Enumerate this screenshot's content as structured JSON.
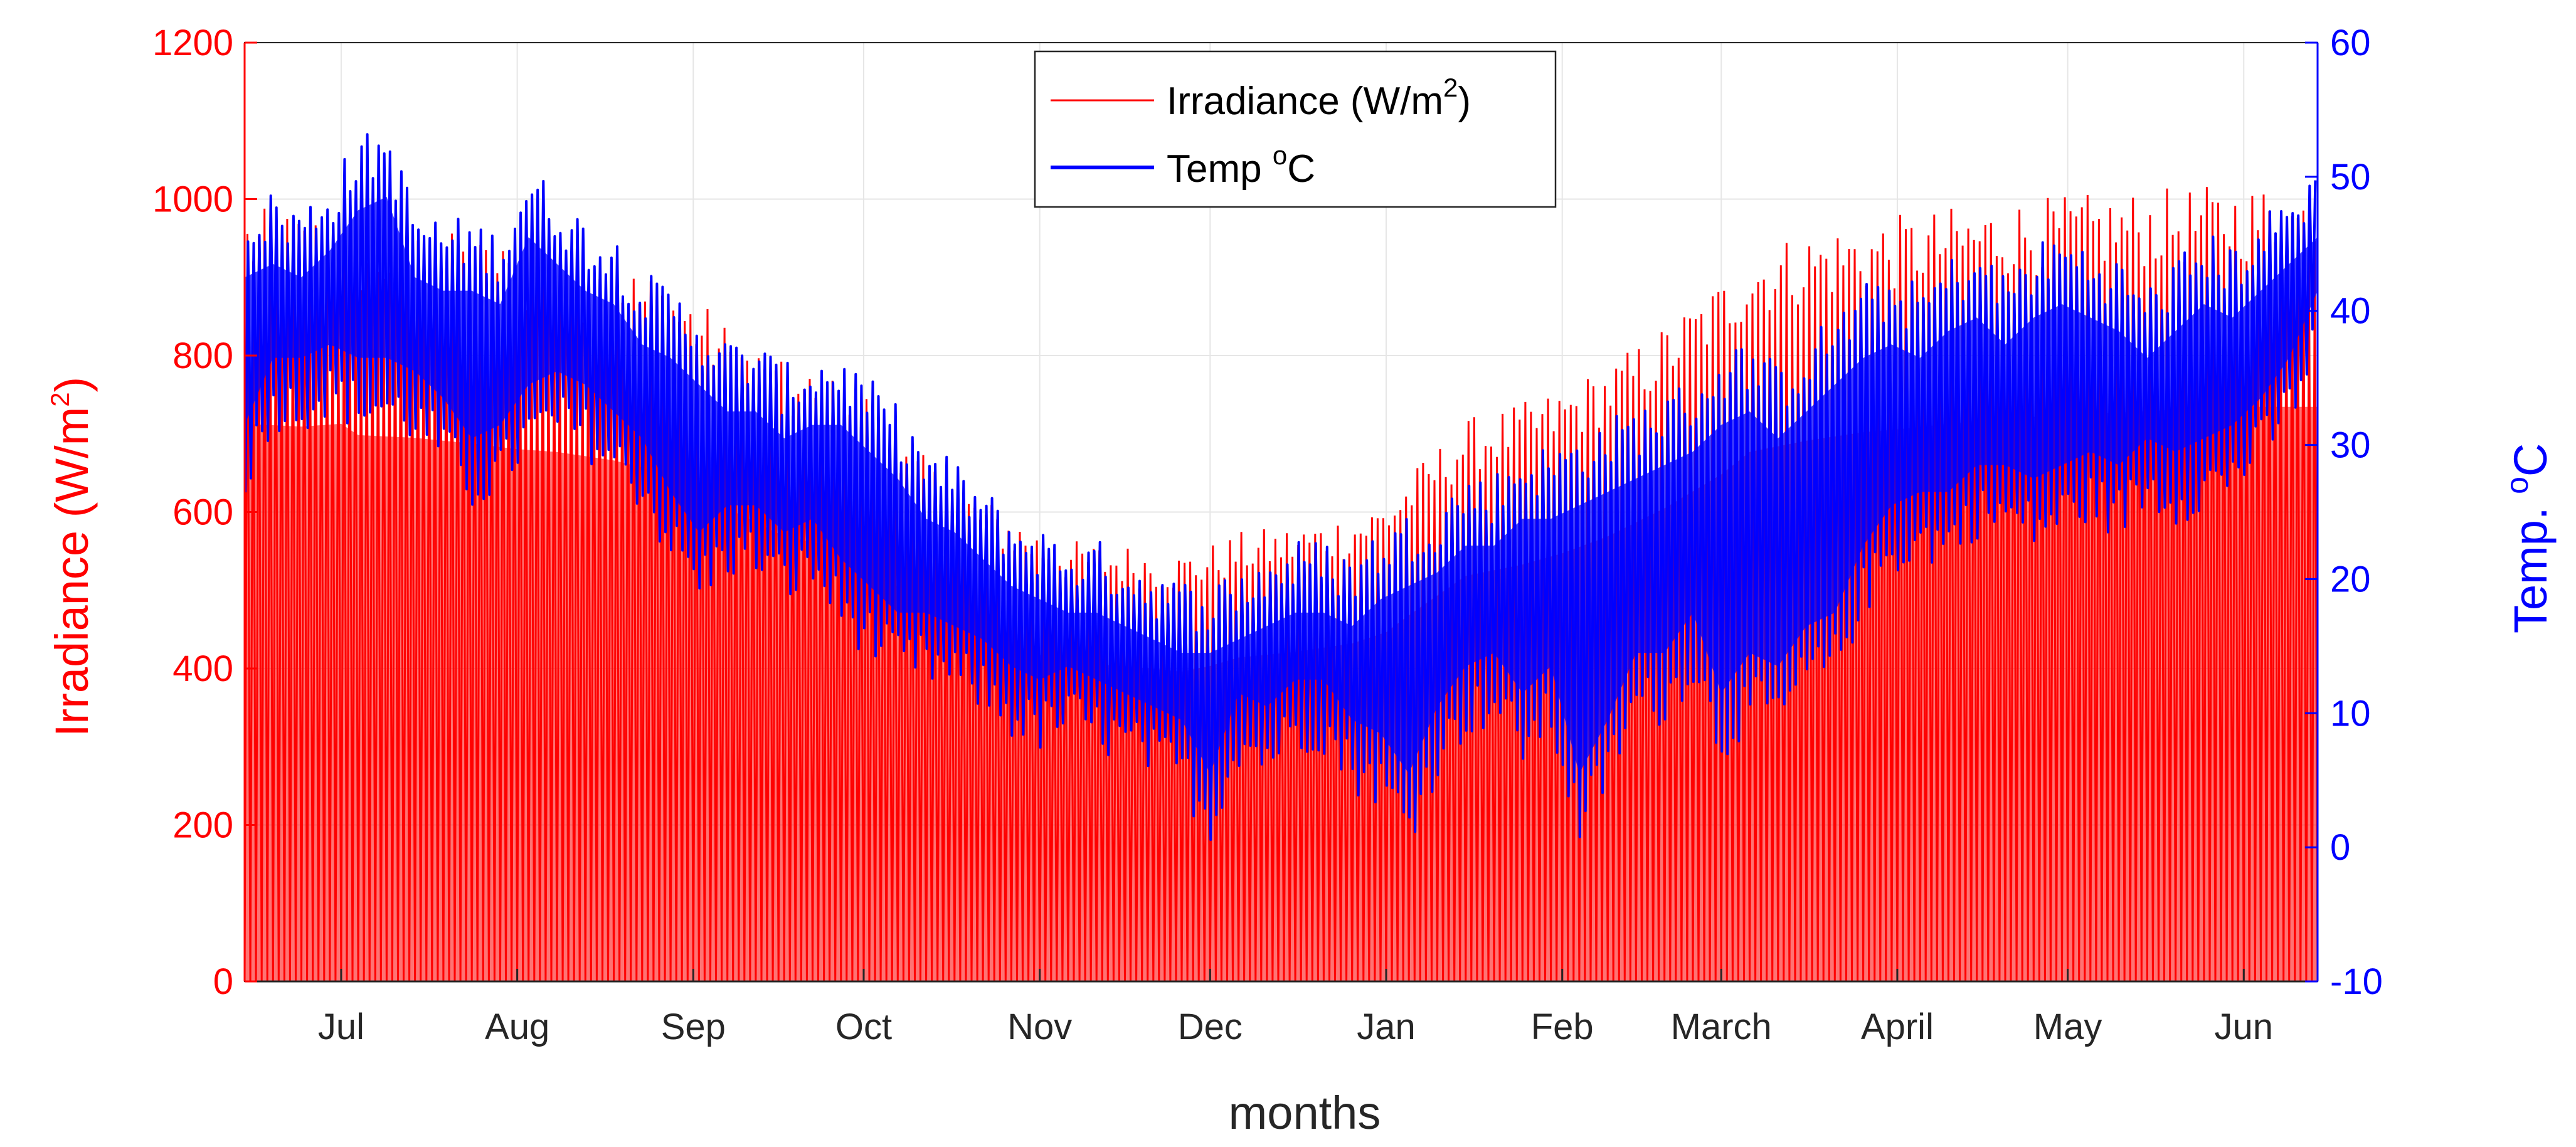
{
  "chart_data": {
    "type": "line",
    "title": "",
    "xlabel": "months",
    "ylabel_left": {
      "text": "Irradiance (W/m",
      "sup": "2",
      "suffix": ")"
    },
    "ylabel_right": {
      "text": "Temp. ",
      "sup": "o",
      "suffix": "C"
    },
    "ylim_left": [
      0,
      1200
    ],
    "ylim_right": [
      -10,
      60
    ],
    "yticks_left": [
      "0",
      "200",
      "400",
      "600",
      "800",
      "1000",
      "1200"
    ],
    "yticks_right": [
      "-10",
      "0",
      "10",
      "20",
      "30",
      "40",
      "50",
      "60"
    ],
    "x_ticks": [
      "Jul",
      "Aug",
      "Sep",
      "Oct",
      "Nov",
      "Dec",
      "Jan",
      "Feb",
      "March",
      "April",
      "May",
      "Jun"
    ],
    "x_tick_days": [
      17,
      48,
      79,
      109,
      140,
      170,
      201,
      232,
      260,
      291,
      321,
      352
    ],
    "x_range_days": [
      0,
      365
    ],
    "grid": true,
    "legend_position": "top-center",
    "colors": {
      "irradiance": "#ff0000",
      "temperature": "#0000ff",
      "grid": "#e6e6e6",
      "axis_left": "#ff0000",
      "axis_right": "#0000ff"
    },
    "series": [
      {
        "name": "Irradiance",
        "legend": {
          "text": "Irradiance (W/m",
          "sup": "2",
          "suffix": ")"
        },
        "axis": "left",
        "sampling": "daily envelope (midnight minimum = 0)",
        "x_days": [
          0,
          10,
          17,
          20,
          30,
          40,
          48,
          55,
          65,
          75,
          79,
          85,
          95,
          105,
          109,
          115,
          125,
          135,
          140,
          145,
          155,
          165,
          170,
          175,
          185,
          195,
          201,
          205,
          215,
          225,
          232,
          240,
          250,
          260,
          265,
          275,
          285,
          291,
          300,
          310,
          321,
          330,
          340,
          352,
          358,
          365
        ],
        "daily_max": [
          990,
          985,
          990,
          970,
          965,
          955,
          945,
          940,
          925,
          900,
          880,
          840,
          790,
          770,
          760,
          700,
          640,
          600,
          580,
          565,
          560,
          550,
          560,
          575,
          585,
          600,
          620,
          650,
          720,
          740,
          760,
          790,
          840,
          900,
          940,
          960,
          975,
          980,
          990,
          1000,
          1005,
          1010,
          1015,
          1020,
          1020,
          1020
        ],
        "daily_min": [
          0,
          0,
          0,
          0,
          0,
          0,
          0,
          0,
          0,
          0,
          0,
          0,
          0,
          0,
          0,
          0,
          0,
          0,
          0,
          0,
          0,
          0,
          0,
          0,
          0,
          0,
          0,
          0,
          0,
          0,
          0,
          0,
          0,
          0,
          0,
          0,
          0,
          0,
          0,
          0,
          0,
          0,
          0,
          0,
          0,
          0
        ]
      },
      {
        "name": "Temperature",
        "legend": {
          "text": "Temp ",
          "sup": "o",
          "suffix": "C"
        },
        "axis": "right",
        "sampling": "daily envelope",
        "x_days": [
          0,
          5,
          10,
          15,
          20,
          25,
          30,
          35,
          40,
          45,
          50,
          55,
          60,
          65,
          70,
          75,
          80,
          85,
          90,
          95,
          100,
          105,
          110,
          115,
          120,
          125,
          130,
          135,
          140,
          145,
          150,
          155,
          160,
          165,
          170,
          175,
          180,
          185,
          190,
          195,
          200,
          205,
          210,
          215,
          220,
          225,
          230,
          235,
          240,
          245,
          250,
          255,
          260,
          265,
          270,
          275,
          280,
          285,
          290,
          295,
          300,
          305,
          310,
          315,
          320,
          325,
          330,
          335,
          340,
          345,
          350,
          355,
          360,
          365
        ],
        "daily_max": [
          46,
          47,
          46,
          48,
          51,
          52,
          46,
          45,
          45,
          44,
          49,
          47,
          45,
          44,
          41,
          40,
          38,
          36,
          36,
          34,
          35,
          35,
          33,
          31,
          28,
          27,
          25,
          23,
          22,
          21,
          21,
          20,
          19,
          18,
          18,
          19,
          20,
          21,
          21,
          20,
          22,
          23,
          24,
          26,
          26,
          28,
          28,
          29,
          30,
          31,
          32,
          33,
          35,
          36,
          34,
          36,
          38,
          40,
          41,
          40,
          42,
          43,
          41,
          43,
          44,
          43,
          42,
          40,
          42,
          44,
          43,
          45,
          47,
          49
        ],
        "daily_min": [
          28,
          33,
          33,
          34,
          33,
          33,
          32,
          30,
          27,
          28,
          31,
          32,
          31,
          29,
          27,
          23,
          20,
          22,
          22,
          20,
          21,
          18,
          16,
          14,
          14,
          13,
          12,
          10,
          9,
          10,
          9,
          8,
          7,
          6,
          2,
          8,
          7,
          9,
          9,
          6,
          5,
          2,
          7,
          10,
          11,
          8,
          10,
          2,
          6,
          11,
          11,
          14,
          8,
          11,
          10,
          13,
          14,
          19,
          22,
          23,
          23,
          25,
          25,
          24,
          25,
          26,
          25,
          27,
          26,
          27,
          28,
          30,
          33,
          38
        ]
      }
    ]
  }
}
